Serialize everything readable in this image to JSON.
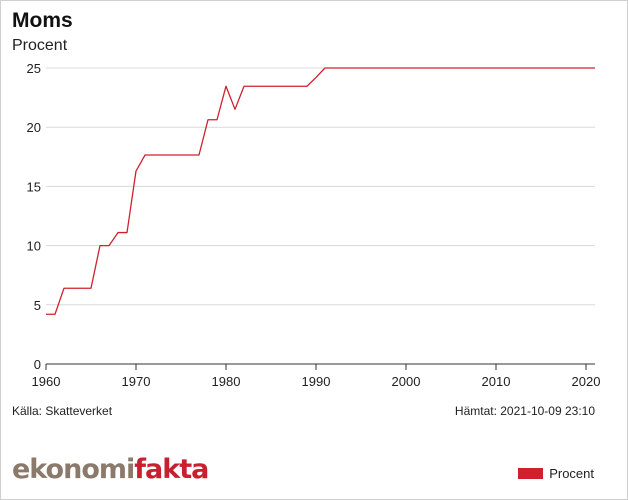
{
  "chart_data": {
    "type": "line",
    "title": "Moms",
    "subtitle": "Procent",
    "xlabel": "",
    "ylabel": "",
    "xlim": [
      1960,
      2021
    ],
    "ylim": [
      0,
      25
    ],
    "x_ticks": [
      "1960",
      "1970",
      "1980",
      "1990",
      "2000",
      "2010",
      "2020"
    ],
    "y_ticks": [
      "0",
      "5",
      "10",
      "15",
      "20",
      "25"
    ],
    "grid": true,
    "legend_position": "bottom-right",
    "series": [
      {
        "name": "Procent",
        "color": "#d0202e",
        "points": [
          [
            1960,
            4.2
          ],
          [
            1961,
            4.2
          ],
          [
            1962,
            6.4
          ],
          [
            1963,
            6.4
          ],
          [
            1964,
            6.4
          ],
          [
            1965,
            6.4
          ],
          [
            1966,
            10.0
          ],
          [
            1967,
            10.0
          ],
          [
            1968,
            11.1
          ],
          [
            1969,
            11.1
          ],
          [
            1970,
            16.3
          ],
          [
            1971,
            17.65
          ],
          [
            1972,
            17.65
          ],
          [
            1973,
            17.65
          ],
          [
            1974,
            17.65
          ],
          [
            1975,
            17.65
          ],
          [
            1976,
            17.65
          ],
          [
            1977,
            17.65
          ],
          [
            1978,
            20.63
          ],
          [
            1979,
            20.63
          ],
          [
            1980,
            23.46
          ],
          [
            1981,
            21.51
          ],
          [
            1982,
            23.46
          ],
          [
            1983,
            23.46
          ],
          [
            1984,
            23.46
          ],
          [
            1985,
            23.46
          ],
          [
            1986,
            23.46
          ],
          [
            1987,
            23.46
          ],
          [
            1988,
            23.46
          ],
          [
            1989,
            23.46
          ],
          [
            1990,
            24.2
          ],
          [
            1991,
            25.0
          ],
          [
            2021,
            25.0
          ]
        ]
      }
    ]
  },
  "footer": {
    "source": "Källa: Skatteverket",
    "fetched": "Hämtat: 2021-10-09 23:10",
    "logo_part1": "ekonomi",
    "logo_part2": "fakta"
  },
  "legend": {
    "label": "Procent"
  }
}
